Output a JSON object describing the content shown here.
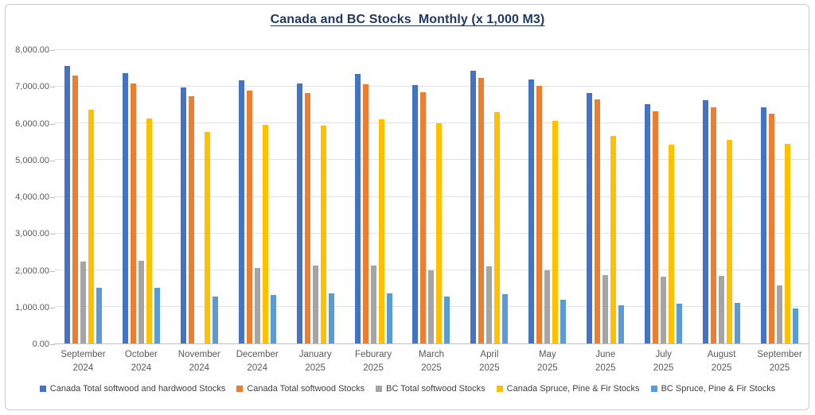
{
  "chart_data": {
    "type": "bar",
    "title": "Canada and BC Stocks  Monthly (x 1,000 M3)",
    "xlabel": "",
    "ylabel": "",
    "ylim": [
      0,
      8000
    ],
    "y_tick_labels": [
      "0.00",
      "1,000.00",
      "2,000.00",
      "3,000.00",
      "4,000.00",
      "5,000.00",
      "6,000.00",
      "7,000.00",
      "8,000.00"
    ],
    "grid": true,
    "legend_position": "bottom",
    "categories": [
      {
        "month": "September",
        "year": "2024"
      },
      {
        "month": "October",
        "year": "2024"
      },
      {
        "month": "November",
        "year": "2024"
      },
      {
        "month": "December",
        "year": "2024"
      },
      {
        "month": "January",
        "year": "2025"
      },
      {
        "month": "Feburary",
        "year": "2025"
      },
      {
        "month": "March",
        "year": "2025"
      },
      {
        "month": "April",
        "year": "2025"
      },
      {
        "month": "May",
        "year": "2025"
      },
      {
        "month": "June",
        "year": "2025"
      },
      {
        "month": "July",
        "year": "2025"
      },
      {
        "month": "August",
        "year": "2025"
      },
      {
        "month": "September",
        "year": "2025"
      }
    ],
    "series": [
      {
        "name": "Canada Total softwood and hardwood Stocks",
        "color": "#4472C4",
        "values": [
          7570,
          7370,
          6990,
          7180,
          7090,
          7360,
          7040,
          7430,
          7190,
          6830,
          6520,
          6640,
          6450
        ]
      },
      {
        "name": "Canada Total softwood Stocks",
        "color": "#ED7D31",
        "values": [
          7310,
          7100,
          6740,
          6900,
          6820,
          7070,
          6860,
          7250,
          7030,
          6660,
          6340,
          6450,
          6270
        ]
      },
      {
        "name": "BC Total softwood Stocks",
        "color": "#A5A5A5",
        "values": [
          2230,
          2260,
          0,
          2060,
          2120,
          2120,
          1990,
          2110,
          1990,
          1870,
          1820,
          1840,
          1580
        ]
      },
      {
        "name": "Canada Spruce, Pine & Fir Stocks",
        "color": "#FFC000",
        "values": [
          6380,
          6140,
          5770,
          5960,
          5930,
          6120,
          6000,
          6320,
          6080,
          5650,
          5430,
          5550,
          5440
        ]
      },
      {
        "name": "BC Spruce, Pine & Fir Stocks",
        "color": "#5B9BD5",
        "values": [
          1520,
          1520,
          1280,
          1330,
          1360,
          1370,
          1280,
          1350,
          1200,
          1040,
          1080,
          1100,
          950
        ]
      }
    ]
  },
  "colors": {
    "title": "#1F3864",
    "axis_text": "#595959",
    "gridline": "#E2E2E2",
    "axis_line": "#BFBFBF",
    "frame_border": "#C9C9C9"
  }
}
